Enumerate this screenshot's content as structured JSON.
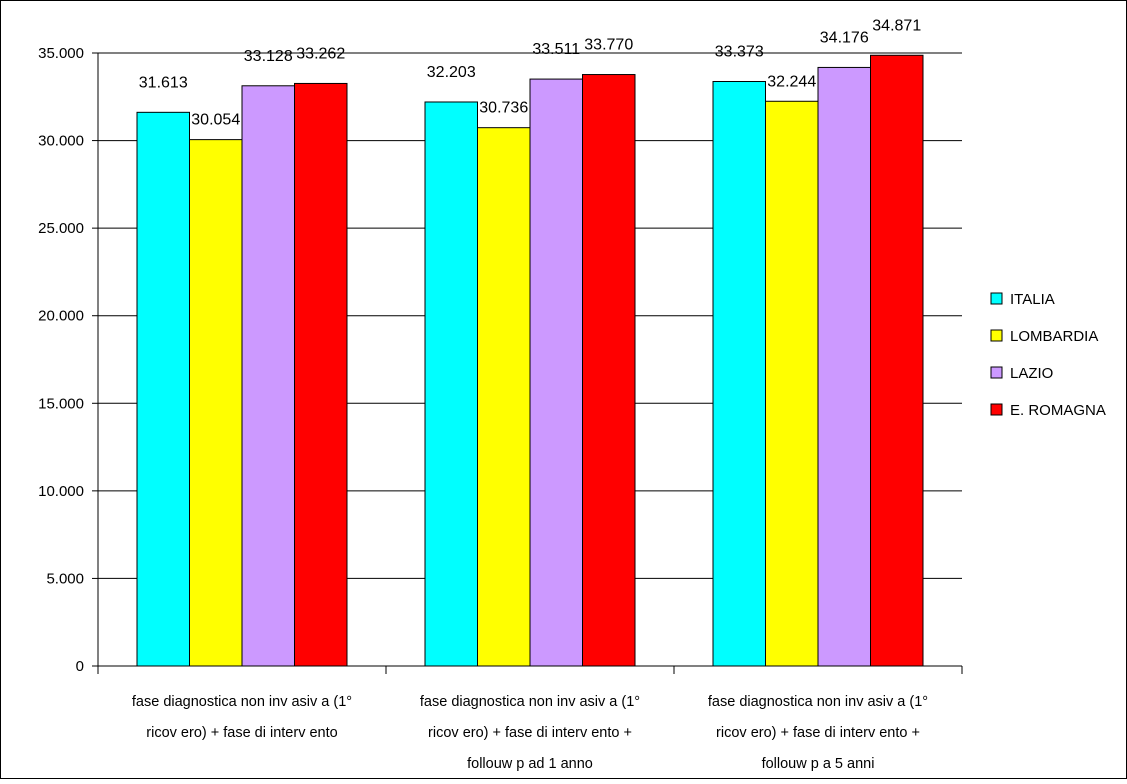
{
  "chart_data": {
    "type": "bar",
    "title": "",
    "xlabel": "",
    "ylabel": "",
    "categories": [
      [
        "fase diagnostica non inv asiv a (1°",
        "ricov ero) + fase di interv ento"
      ],
      [
        "fase diagnostica non inv asiv a (1°",
        "ricov ero) + fase di interv ento +",
        "follouw p ad 1 anno"
      ],
      [
        "fase diagnostica non inv asiv a (1°",
        "ricov ero) + fase di interv ento +",
        "follouw p a 5 anni"
      ]
    ],
    "series": [
      {
        "name": "ITALIA",
        "color": "#00FFFF",
        "values": [
          31613,
          32203,
          33373
        ],
        "labels": [
          "31.613",
          "32.203",
          "33.373"
        ]
      },
      {
        "name": "LOMBARDIA",
        "color": "#FFFF00",
        "values": [
          30054,
          30736,
          32244
        ],
        "labels": [
          "30.054",
          "30.736",
          "32.244"
        ]
      },
      {
        "name": "LAZIO",
        "color": "#CC99FF",
        "values": [
          33128,
          33511,
          34176
        ],
        "labels": [
          "33.128",
          "33.511",
          "34.176"
        ]
      },
      {
        "name": "E. ROMAGNA",
        "color": "#FF0000",
        "values": [
          33262,
          33770,
          34871
        ],
        "labels": [
          "33.262",
          "33.770",
          "34.871"
        ]
      }
    ],
    "ylim": [
      0,
      35000
    ],
    "yticks": [
      0,
      5000,
      10000,
      15000,
      20000,
      25000,
      30000,
      35000
    ],
    "ytick_labels": [
      "0",
      "5.000",
      "10.000",
      "15.000",
      "20.000",
      "25.000",
      "30.000",
      "35.000"
    ],
    "grid": true,
    "legend": "right"
  }
}
